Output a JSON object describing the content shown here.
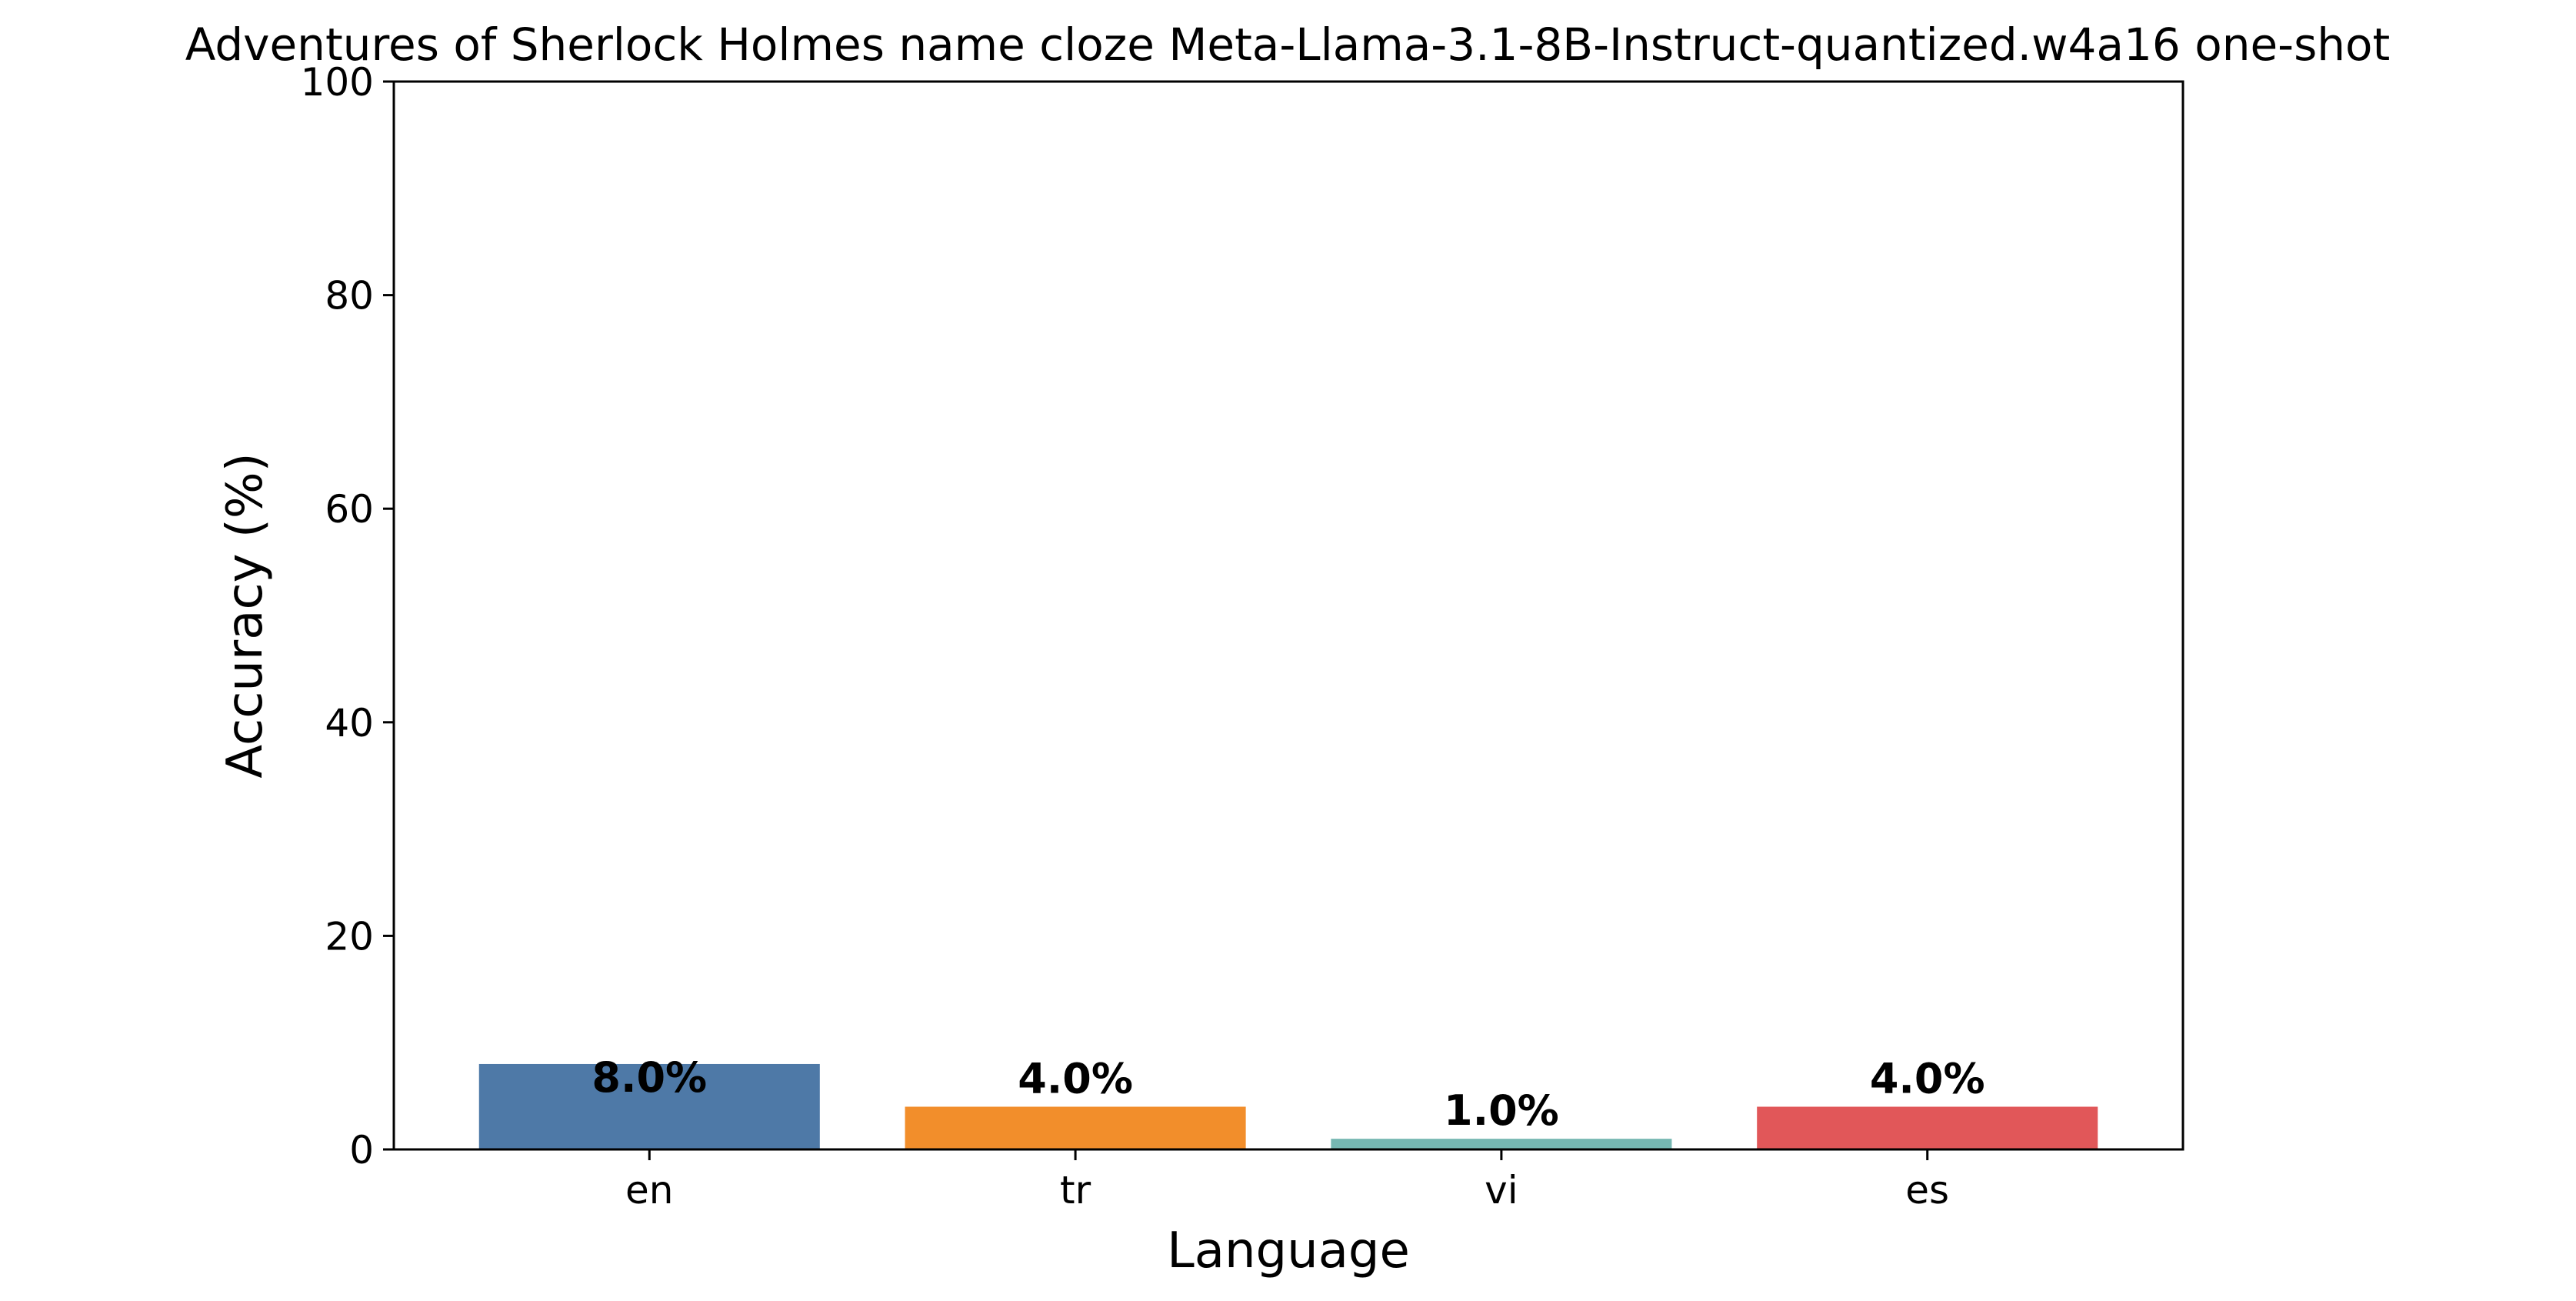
{
  "chart_data": {
    "type": "bar",
    "title": "Adventures of Sherlock Holmes name cloze Meta-Llama-3.1-8B-Instruct-quantized.w4a16 one-shot",
    "xlabel": "Language",
    "ylabel": "Accuracy (%)",
    "categories": [
      "en",
      "tr",
      "vi",
      "es"
    ],
    "values": [
      8.0,
      4.0,
      1.0,
      4.0
    ],
    "data_labels": [
      "8.0%",
      "4.0%",
      "1.0%",
      "4.0%"
    ],
    "colors": [
      "#4e79a7",
      "#f28e2b",
      "#76b7b2",
      "#e15759"
    ],
    "ylim": [
      0,
      100
    ],
    "yticks": [
      0,
      20,
      40,
      60,
      80,
      100
    ],
    "grid": false,
    "legend": "none"
  }
}
